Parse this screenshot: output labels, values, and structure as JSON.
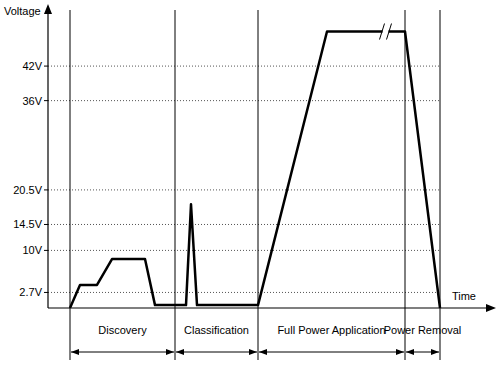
{
  "chart_data": {
    "type": "line",
    "y_label": "Voltage",
    "x_label": "Time",
    "x": [
      22,
      32,
      49,
      64,
      97,
      107,
      138,
      143,
      149,
      210,
      279,
      357,
      392
    ],
    "values": [
      0,
      4,
      4,
      8.5,
      8.5,
      0.5,
      0.5,
      18,
      0.5,
      0.5,
      48,
      48,
      0
    ],
    "color": "#000000",
    "xlim": [
      0,
      430
    ],
    "ylim": [
      0,
      50
    ],
    "yticks": [
      {
        "value": 2.7,
        "label": "2.7V"
      },
      {
        "value": 10,
        "label": "10V"
      },
      {
        "value": 14.5,
        "label": "14.5V"
      },
      {
        "value": 20.5,
        "label": "20.5V"
      },
      {
        "value": 36,
        "label": "36V"
      },
      {
        "value": 42,
        "label": "42V"
      }
    ],
    "grid": true,
    "tick_labels": "y",
    "phases": [
      {
        "label": "Discovery",
        "start": 22,
        "end": 127
      },
      {
        "label": "Classification",
        "start": 127,
        "end": 210
      },
      {
        "label": "Full Power Application",
        "start": 210,
        "end": 357
      },
      {
        "label": "Power Removal",
        "start": 357,
        "end": 392
      }
    ]
  }
}
